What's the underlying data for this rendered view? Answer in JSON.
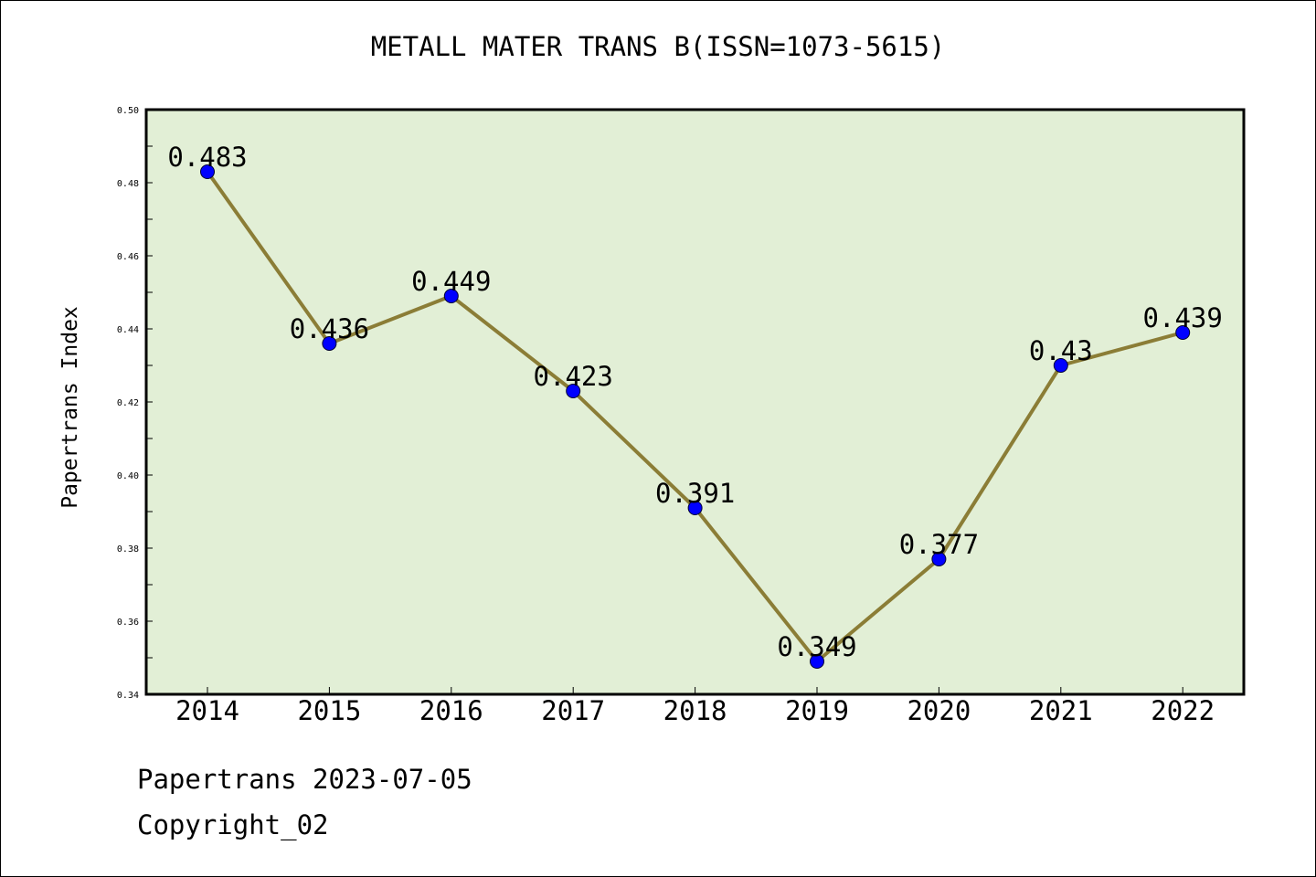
{
  "chart_data": {
    "type": "line",
    "title": "METALL MATER TRANS B(ISSN=1073-5615)",
    "xlabel": "",
    "ylabel": "Papertrans Index",
    "categories": [
      "2014",
      "2015",
      "2016",
      "2017",
      "2018",
      "2019",
      "2020",
      "2021",
      "2022"
    ],
    "values": [
      0.483,
      0.436,
      0.449,
      0.423,
      0.391,
      0.349,
      0.377,
      0.43,
      0.439
    ],
    "data_labels": [
      "0.483",
      "0.436",
      "0.449",
      "0.423",
      "0.391",
      "0.349",
      "0.377",
      "0.43",
      "0.439"
    ],
    "ylim": [
      0.34,
      0.5
    ],
    "yticks": [
      "0.34",
      "0.36",
      "0.38",
      "0.40",
      "0.42",
      "0.44",
      "0.46",
      "0.48",
      "0.50"
    ],
    "grid": false,
    "legend": "none",
    "colors": {
      "plot_background": "#e2efd6",
      "line": "#8b7d36",
      "marker": "#0000ff",
      "axis": "#000000"
    }
  },
  "footer": {
    "line1": "Papertrans 2023-07-05",
    "line2": "Copyright_02"
  }
}
